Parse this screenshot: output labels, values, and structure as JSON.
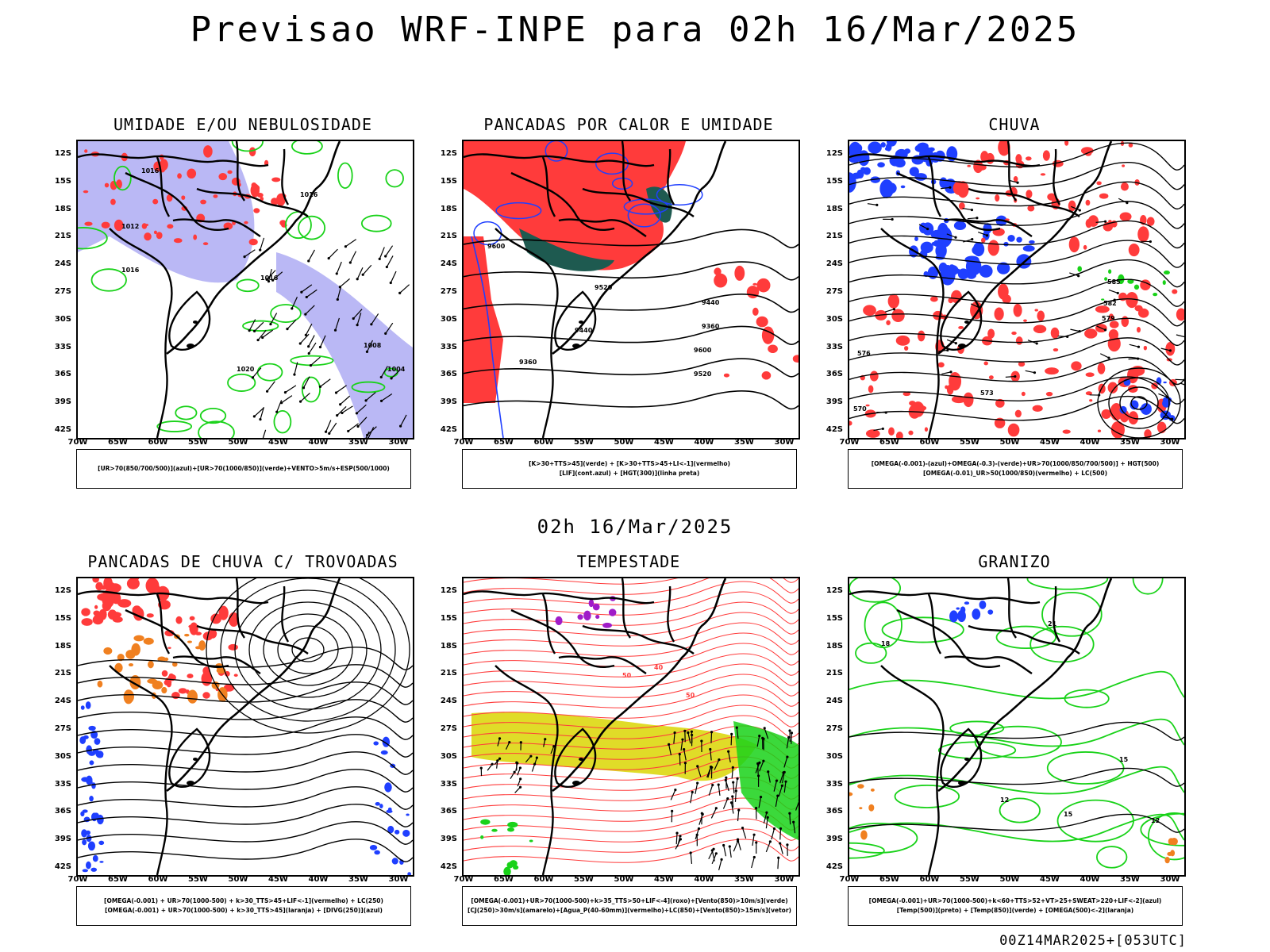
{
  "title": "Previsao WRF-INPE  para 02h 16/Mar/2025",
  "mid_title": "02h 16/Mar/2025",
  "footer": "00Z14MAR2025+[053UTC]",
  "lat_labels": [
    "12S",
    "15S",
    "18S",
    "21S",
    "24S",
    "27S",
    "30S",
    "33S",
    "36S",
    "39S",
    "42S"
  ],
  "lon_labels": [
    "70W",
    "65W",
    "60W",
    "55W",
    "50W",
    "45W",
    "40W",
    "35W",
    "30W"
  ],
  "panels": [
    {
      "title": "UMIDADE E/OU NEBULOSIDADE",
      "legend": [
        "[UR>70(850/700/500)](azul)+[UR>70(1000/850)](verde)+VENTO>5m/s+ESP(500/1000)"
      ],
      "contour_labels": [
        "1012",
        "1016",
        "1016",
        "1016",
        "1016",
        "1008",
        "1020",
        "1004"
      ]
    },
    {
      "title": "PANCADAS POR CALOR E UMIDADE",
      "legend": [
        "[K>30+TTS>45](verde) + [K>30+TTS>45+LI<-1](vermelho)",
        "[LIF](cont.azul) + [HGT(300)](linha preta)"
      ],
      "contour_labels": [
        "9600",
        "9520",
        "9440",
        "9360",
        "9600",
        "9520",
        "9440",
        "9360"
      ]
    },
    {
      "title": "CHUVA",
      "legend": [
        "[OMEGA(-0.001)-(azul)+OMEGA(-0.3)-(verde)+UR>70(1000/850/700/500)] + HGT(500)",
        "[OMEGA(-0.01)_UR>50(1000/850)(vermelho) + LC(500)"
      ],
      "contour_labels": [
        "585",
        "582",
        "579",
        "576",
        "573",
        "570"
      ]
    },
    {
      "title": "PANCADAS DE CHUVA C/ TROVOADAS",
      "legend": [
        "[OMEGA(-0.001) + UR>70(1000-500) + k>30_TTS>45+LIF<-1](vermelho) + LC(250)",
        "[OMEGA(-0.001) + UR>70(1000-500) + k>30_TTS>45](laranja) + [DIVG(250)](azul)"
      ],
      "contour_labels": []
    },
    {
      "title": "TEMPESTADE",
      "legend": [
        "[OMEGA(-0.001)+UR>70(1000-500)+k>35_TTS>50+LIF<-4](roxo)+[Vento(850)>10m/s](verde)",
        "[CJ(250)>30m/s](amarelo)+[Agua_P(40-60mm)](vermelho)+LC(850)+[Vento(850)>15m/s](vetor)"
      ],
      "contour_labels": [
        "50",
        "50",
        "40"
      ]
    },
    {
      "title": "GRANIZO",
      "legend": [
        "[OMEGA(-0.001)+UR>70(1000-500)+k<60+TTS>52+VT>25+SWEAT>220+LIF<-2](azul)",
        "[Temp(500)](preto) + [Temp(850)](verde) + [OMEGA(500)<-2](laranja)"
      ],
      "contour_labels": [
        "12",
        "15",
        "12",
        "15",
        "18",
        "21"
      ]
    }
  ],
  "colors": {
    "blue": "#1f3fff",
    "green": "#19d219",
    "red": "#ff3b3b",
    "orange": "#f08020",
    "yellow": "#e0dc28",
    "purple": "#a01cc8",
    "darkgreen": "#1e5a50",
    "lavender": "#a9a6f2"
  }
}
